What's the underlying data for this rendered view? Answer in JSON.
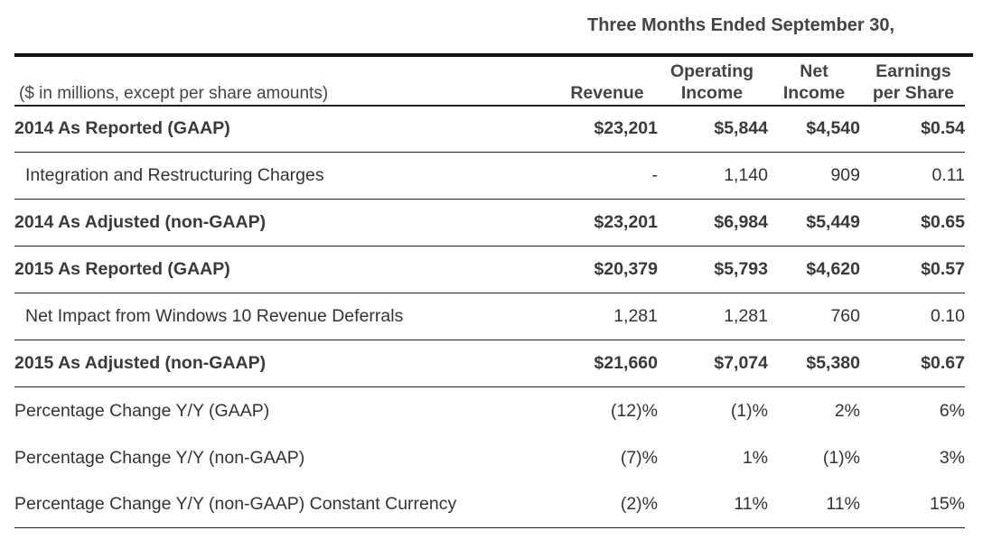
{
  "header": {
    "period": "Three Months Ended September 30,",
    "units": "($ in millions, except per share amounts)",
    "columns": {
      "revenue": [
        "Revenue"
      ],
      "operating_income": [
        "Operating",
        "Income"
      ],
      "net_income": [
        "Net",
        "Income"
      ],
      "eps": [
        "Earnings",
        "per Share"
      ]
    }
  },
  "rows": [
    {
      "label": "2014 As Reported (GAAP)",
      "revenue": "$23,201",
      "operating_income": "$5,844",
      "net_income": "$4,540",
      "eps": "$0.54"
    },
    {
      "label": "Integration and Restructuring Charges",
      "revenue": "-",
      "operating_income": "1,140",
      "net_income": "909",
      "eps": "0.11"
    },
    {
      "label": "2014 As Adjusted (non-GAAP)",
      "revenue": "$23,201",
      "operating_income": "$6,984",
      "net_income": "$5,449",
      "eps": "$0.65"
    },
    {
      "label": "2015 As Reported (GAAP)",
      "revenue": "$20,379",
      "operating_income": "$5,793",
      "net_income": "$4,620",
      "eps": "$0.57"
    },
    {
      "label": "Net Impact from Windows 10 Revenue Deferrals",
      "revenue": "1,281",
      "operating_income": "1,281",
      "net_income": "760",
      "eps": "0.10"
    },
    {
      "label": "2015 As Adjusted (non-GAAP)",
      "revenue": "$21,660",
      "operating_income": "$7,074",
      "net_income": "$5,380",
      "eps": "$0.67"
    },
    {
      "label": "Percentage Change Y/Y (GAAP)",
      "revenue": "(12)%",
      "operating_income": "(1)%",
      "net_income": "2%",
      "eps": "6%"
    },
    {
      "label": "Percentage Change Y/Y (non-GAAP)",
      "revenue": "(7)%",
      "operating_income": "1%",
      "net_income": "(1)%",
      "eps": "3%"
    },
    {
      "label": "Percentage Change Y/Y (non-GAAP) Constant Currency",
      "revenue": "(2)%",
      "operating_income": "11%",
      "net_income": "11%",
      "eps": "15%"
    }
  ]
}
